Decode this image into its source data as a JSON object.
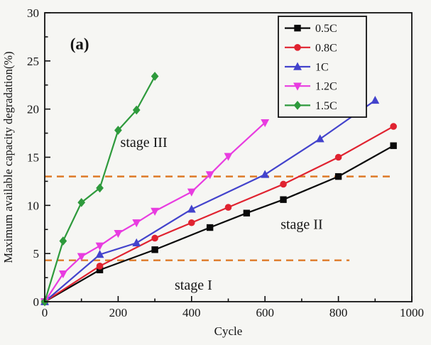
{
  "figure": {
    "panel_label": "(a)"
  },
  "chart_data": {
    "type": "line",
    "title": "",
    "xlabel": "Cycle",
    "ylabel": "Maximum available capacity degradation(%)",
    "xlim": [
      0,
      1000
    ],
    "ylim": [
      0,
      30
    ],
    "x_major_ticks": [
      0,
      200,
      400,
      600,
      800,
      1000
    ],
    "x_minor_step": 100,
    "y_major_ticks": [
      0,
      5,
      10,
      15,
      20,
      25,
      30
    ],
    "y_minor_step": 2.5,
    "grid": false,
    "legend_position": "top-right",
    "axis_color": "#111111",
    "series": [
      {
        "name": "0.5C",
        "color": "#0a0a0a",
        "marker": "square",
        "x": [
          0,
          150,
          300,
          450,
          550,
          650,
          800,
          950
        ],
        "y": [
          0,
          3.3,
          5.4,
          7.7,
          9.2,
          10.6,
          13.0,
          16.2
        ]
      },
      {
        "name": "0.8C",
        "color": "#e02330",
        "marker": "circle",
        "x": [
          0,
          150,
          300,
          400,
          500,
          650,
          800,
          950
        ],
        "y": [
          0,
          3.7,
          6.6,
          8.2,
          9.8,
          12.2,
          15.0,
          18.2
        ]
      },
      {
        "name": "1C",
        "color": "#4343cc",
        "marker": "triangle-up",
        "x": [
          0,
          150,
          250,
          400,
          600,
          750,
          900
        ],
        "y": [
          0,
          4.9,
          6.1,
          9.6,
          13.2,
          16.9,
          20.9
        ]
      },
      {
        "name": "1.2C",
        "color": "#e83ce0",
        "marker": "triangle-down",
        "x": [
          0,
          50,
          100,
          150,
          200,
          250,
          300,
          400,
          450,
          500,
          600
        ],
        "y": [
          0,
          2.9,
          4.7,
          5.8,
          7.1,
          8.2,
          9.4,
          11.4,
          13.2,
          15.1,
          18.6
        ]
      },
      {
        "name": "1.5C",
        "color": "#2e9a3c",
        "marker": "diamond",
        "x": [
          0,
          50,
          100,
          150,
          200,
          250,
          300
        ],
        "y": [
          0,
          6.3,
          10.3,
          11.8,
          17.8,
          19.9,
          23.4
        ]
      }
    ],
    "reference_lines": [
      {
        "y": 13.0,
        "x1": 0,
        "x2": 940,
        "color": "#de7a28",
        "style": "dashed"
      },
      {
        "y": 4.3,
        "x1": 0,
        "x2": 830,
        "color": "#de7a28",
        "style": "dashed"
      }
    ],
    "annotations": [
      {
        "text": "(a)",
        "x": 95,
        "y": 26.6,
        "size": 23,
        "bold": true
      },
      {
        "text": "stage III",
        "x": 270,
        "y": 16.4,
        "size": 20,
        "bold": false
      },
      {
        "text": "stage II",
        "x": 700,
        "y": 7.9,
        "size": 20,
        "bold": false
      },
      {
        "text": "stage I",
        "x": 405,
        "y": 1.6,
        "size": 20,
        "bold": false
      }
    ]
  }
}
